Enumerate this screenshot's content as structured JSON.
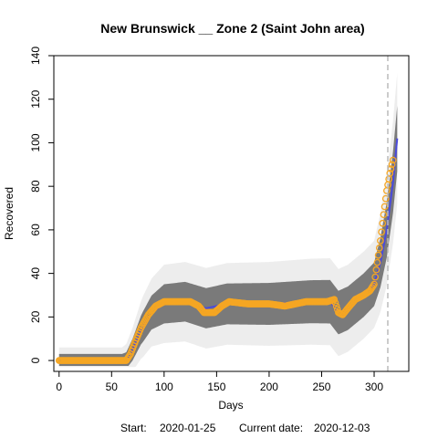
{
  "chart_data": {
    "type": "scatter",
    "title": "New Brunswick __ Zone 2 (Saint John area)",
    "xlabel": "Days",
    "ylabel": "Recovered",
    "xlim": [
      -5,
      333
    ],
    "ylim": [
      -5,
      140
    ],
    "xticks": [
      0,
      50,
      100,
      150,
      200,
      250,
      300
    ],
    "yticks": [
      0,
      20,
      40,
      60,
      80,
      100,
      120,
      140
    ],
    "current_day_line": 313,
    "footer": {
      "start_label": "Start:",
      "start_date": "2020-01-25",
      "current_label": "Current date:",
      "current_date": "2020-12-03"
    },
    "observed_keypoints": [
      [
        0,
        0
      ],
      [
        64,
        0
      ],
      [
        68,
        3
      ],
      [
        72,
        8
      ],
      [
        78,
        15
      ],
      [
        85,
        21
      ],
      [
        92,
        25
      ],
      [
        100,
        27
      ],
      [
        110,
        27
      ],
      [
        125,
        27
      ],
      [
        133,
        25
      ],
      [
        138,
        22
      ],
      [
        148,
        22
      ],
      [
        155,
        25
      ],
      [
        162,
        27
      ],
      [
        180,
        26
      ],
      [
        200,
        26
      ],
      [
        215,
        25
      ],
      [
        235,
        27
      ],
      [
        255,
        27
      ],
      [
        262,
        28
      ],
      [
        266,
        22
      ],
      [
        270,
        21
      ],
      [
        275,
        24
      ],
      [
        282,
        28
      ],
      [
        290,
        30
      ],
      [
        296,
        32
      ],
      [
        300,
        35
      ],
      [
        303,
        45
      ],
      [
        306,
        55
      ],
      [
        309,
        67
      ],
      [
        312,
        78
      ],
      [
        315,
        86
      ],
      [
        318,
        92
      ]
    ],
    "model_keypoints": [
      [
        0,
        0
      ],
      [
        64,
        0
      ],
      [
        70,
        5
      ],
      [
        78,
        14
      ],
      [
        88,
        22
      ],
      [
        100,
        26
      ],
      [
        120,
        27
      ],
      [
        140,
        24
      ],
      [
        160,
        26
      ],
      [
        200,
        26
      ],
      [
        240,
        27
      ],
      [
        258,
        27
      ],
      [
        266,
        22
      ],
      [
        275,
        24
      ],
      [
        290,
        30
      ],
      [
        300,
        35
      ],
      [
        306,
        45
      ],
      [
        312,
        60
      ],
      [
        318,
        82
      ],
      [
        322,
        102
      ]
    ],
    "band_halfwidth_keypoints": [
      [
        0,
        3
      ],
      [
        60,
        3
      ],
      [
        80,
        7
      ],
      [
        100,
        9
      ],
      [
        260,
        10
      ],
      [
        300,
        10
      ],
      [
        322,
        15
      ]
    ],
    "colors": {
      "observed": "#f5a623",
      "model": "#4a4adb",
      "band": "#7a7a7a",
      "current_line": "#bbbbbb"
    }
  }
}
